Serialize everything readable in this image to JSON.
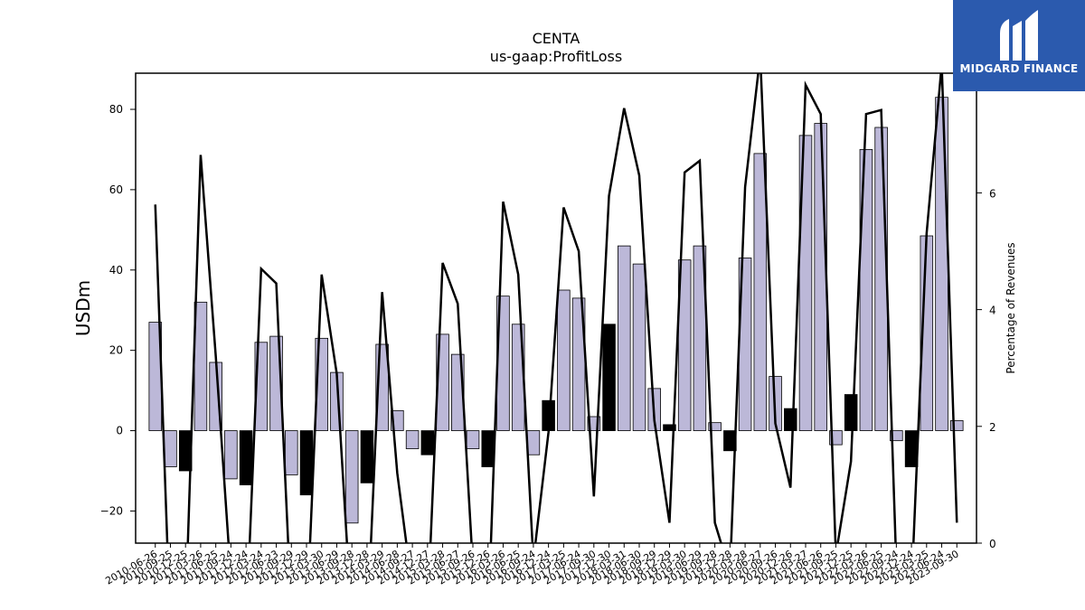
{
  "chart_data": {
    "type": "bar",
    "title": "CENTA",
    "subtitle": "us-gaap:ProfitLoss",
    "ylabel": "USDm",
    "y2label": "Percentage of Revenues",
    "ylim": [
      -28,
      89
    ],
    "y2lim": [
      0,
      8.05
    ],
    "yticks": [
      -20,
      0,
      20,
      40,
      60,
      80
    ],
    "y2ticks": [
      0,
      2,
      4,
      6,
      8
    ],
    "grid": false,
    "colors": {
      "positive_bar": "#bcb8d8",
      "change_bar": "#000000",
      "line": "#000000"
    },
    "categories": [
      "2010-06-26",
      "2010-09-25",
      "2010-12-25",
      "2011-03-26",
      "2011-06-25",
      "2011-09-24",
      "2011-12-24",
      "2012-03-24",
      "2012-06-23",
      "2012-09-29",
      "2012-12-29",
      "2013-03-30",
      "2013-06-29",
      "2013-09-28",
      "2013-12-28",
      "2014-03-29",
      "2014-06-28",
      "2014-09-27",
      "2014-12-27",
      "2015-03-28",
      "2015-06-27",
      "2015-09-26",
      "2015-12-26",
      "2016-03-26",
      "2016-06-25",
      "2016-09-24",
      "2016-12-24",
      "2017-03-25",
      "2017-06-24",
      "2017-09-30",
      "2017-12-30",
      "2018-03-31",
      "2018-06-30",
      "2018-09-29",
      "2018-12-29",
      "2019-03-30",
      "2019-06-29",
      "2019-09-28",
      "2019-12-28",
      "2020-03-28",
      "2020-06-27",
      "2020-09-26",
      "2020-12-26",
      "2021-03-27",
      "2021-06-26",
      "2021-09-25",
      "2021-12-25",
      "2022-03-26",
      "2022-06-25",
      "2022-09-24",
      "2022-12-24",
      "2023-03-25",
      "2023-06-24",
      "2023-09-30"
    ],
    "series": [
      {
        "values": [
          27,
          -9,
          -10,
          32,
          17,
          -12,
          -13.5,
          22,
          23.5,
          -11,
          -16,
          23,
          14.5,
          -23,
          -13,
          21.5,
          5,
          -4.5,
          -6,
          24,
          19,
          -4.5,
          -9,
          33.5,
          26.5,
          -6,
          7.5,
          35,
          33,
          3.5,
          26.5,
          46,
          41.5,
          10.5,
          1.5,
          42.5,
          46,
          2,
          -5,
          43,
          69,
          13.5,
          5.5,
          73.5,
          76.5,
          -3.5,
          9,
          70,
          75.5,
          -2.5,
          -9,
          48.5,
          83,
          2.5
        ],
        "highlight": [
          false,
          false,
          true,
          false,
          false,
          false,
          true,
          false,
          false,
          false,
          true,
          false,
          false,
          false,
          true,
          false,
          false,
          false,
          true,
          false,
          false,
          false,
          true,
          false,
          false,
          false,
          true,
          false,
          false,
          false,
          true,
          false,
          false,
          false,
          true,
          false,
          false,
          false,
          true,
          false,
          false,
          false,
          true,
          false,
          false,
          false,
          true,
          false,
          false,
          false,
          true,
          false,
          false,
          false
        ]
      },
      {
        "axis": "right",
        "type": "line",
        "values": [
          5.8,
          -1.5,
          -1.2,
          6.65,
          3.2,
          -0.6,
          -1.5,
          4.7,
          4.45,
          -1.2,
          -1.4,
          4.6,
          2.9,
          -1.4,
          -1.5,
          4.3,
          1.2,
          -0.8,
          -1.2,
          4.8,
          4.1,
          -0.4,
          -1.4,
          5.85,
          4.6,
          -0.3,
          1.9,
          5.75,
          5.0,
          0.8,
          5.95,
          7.45,
          6.3,
          2.1,
          0.35,
          6.35,
          6.55,
          0.35,
          -0.5,
          6.1,
          8.35,
          2.05,
          0.95,
          7.85,
          7.35,
          -0.2,
          1.4,
          7.35,
          7.42,
          -0.4,
          -0.8,
          5.3,
          8.2,
          0.35
        ]
      }
    ]
  },
  "logo": {
    "brand": "MIDGARD FINANCE"
  }
}
